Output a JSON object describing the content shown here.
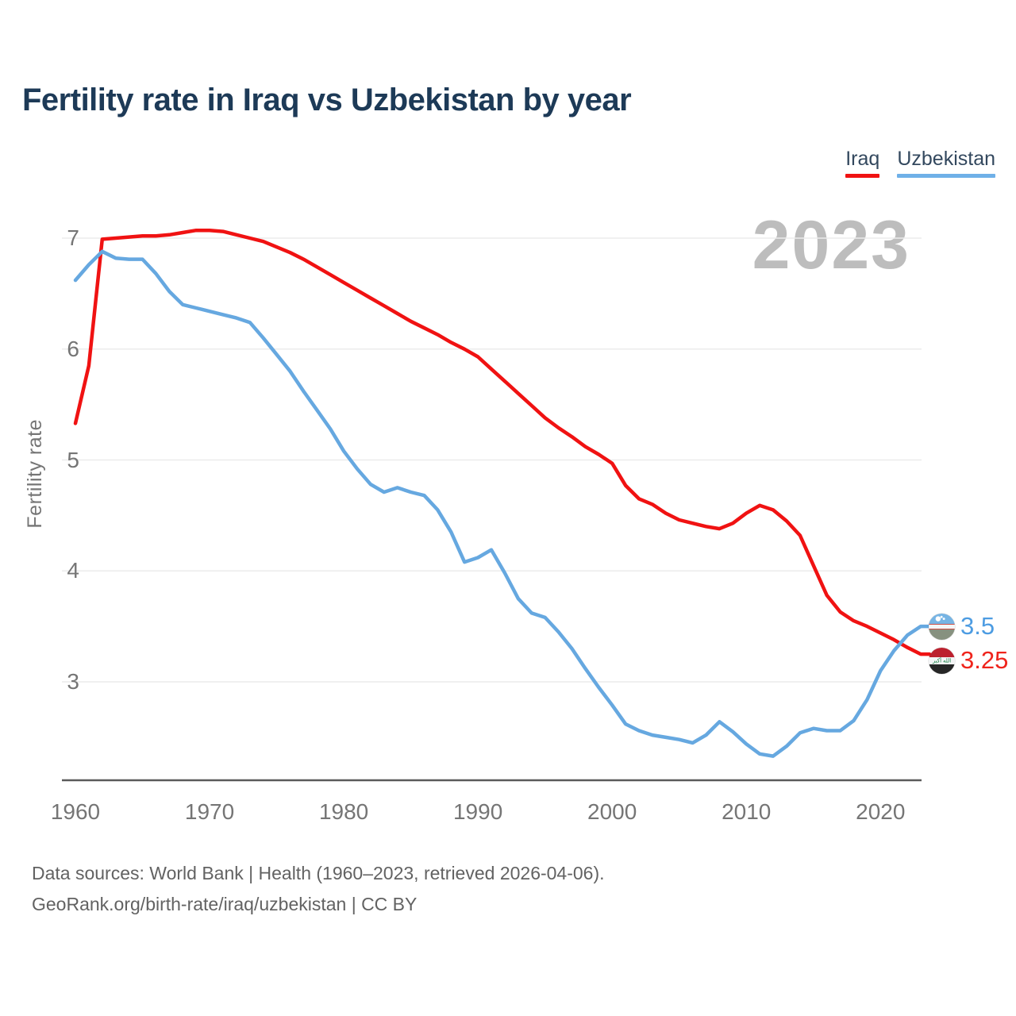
{
  "header": {
    "title": "Fertility rate in Iraq vs Uzbekistan by year"
  },
  "legend": {
    "items": [
      {
        "label": "Iraq",
        "color": "#f01212"
      },
      {
        "label": "Uzbekistan",
        "color": "#6fb0e8"
      }
    ]
  },
  "chart_data": {
    "type": "line",
    "title": "Fertility rate in Iraq vs Uzbekistan by year",
    "xlabel": "",
    "ylabel": "Fertility rate",
    "watermark": "2023",
    "grid": "horizontal",
    "legend_position": "top-right",
    "x_ticks": [
      1960,
      1970,
      1980,
      1990,
      2000,
      2010,
      2020
    ],
    "y_ticks": [
      7,
      6,
      5,
      4,
      3
    ],
    "xlim": [
      1960,
      2023
    ],
    "ylim": [
      2.1,
      7.15
    ],
    "x": [
      1960,
      1961,
      1962,
      1963,
      1964,
      1965,
      1966,
      1967,
      1968,
      1969,
      1970,
      1971,
      1972,
      1973,
      1974,
      1975,
      1976,
      1977,
      1978,
      1979,
      1980,
      1981,
      1982,
      1983,
      1984,
      1985,
      1986,
      1987,
      1988,
      1989,
      1990,
      1991,
      1992,
      1993,
      1994,
      1995,
      1996,
      1997,
      1998,
      1999,
      2000,
      2001,
      2002,
      2003,
      2004,
      2005,
      2006,
      2007,
      2008,
      2009,
      2010,
      2011,
      2012,
      2013,
      2014,
      2015,
      2016,
      2017,
      2018,
      2019,
      2020,
      2021,
      2022,
      2023
    ],
    "series": [
      {
        "name": "Iraq",
        "color": "#f01212",
        "end_label": "3.25",
        "values": [
          5.33,
          5.85,
          6.99,
          7.0,
          7.01,
          7.02,
          7.02,
          7.03,
          7.05,
          7.07,
          7.07,
          7.06,
          7.03,
          7.0,
          6.97,
          6.92,
          6.87,
          6.81,
          6.74,
          6.67,
          6.6,
          6.53,
          6.46,
          6.39,
          6.32,
          6.25,
          6.19,
          6.13,
          6.06,
          6.0,
          5.93,
          5.82,
          5.71,
          5.6,
          5.49,
          5.38,
          5.29,
          5.21,
          5.12,
          5.05,
          4.97,
          4.77,
          4.65,
          4.6,
          4.52,
          4.46,
          4.43,
          4.4,
          4.38,
          4.43,
          4.52,
          4.59,
          4.55,
          4.45,
          4.32,
          4.05,
          3.78,
          3.63,
          3.55,
          3.5,
          3.44,
          3.38,
          3.31,
          3.25
        ]
      },
      {
        "name": "Uzbekistan",
        "color": "#66a8e0",
        "end_label": "3.5",
        "values": [
          6.62,
          6.76,
          6.88,
          6.82,
          6.81,
          6.81,
          6.68,
          6.52,
          6.4,
          6.37,
          6.34,
          6.31,
          6.28,
          6.24,
          6.1,
          5.95,
          5.8,
          5.62,
          5.45,
          5.28,
          5.08,
          4.92,
          4.78,
          4.71,
          4.75,
          4.71,
          4.68,
          4.55,
          4.35,
          4.08,
          4.12,
          4.19,
          3.98,
          3.75,
          3.62,
          3.58,
          3.45,
          3.3,
          3.12,
          2.95,
          2.79,
          2.62,
          2.56,
          2.52,
          2.5,
          2.48,
          2.45,
          2.52,
          2.64,
          2.55,
          2.44,
          2.35,
          2.33,
          2.42,
          2.54,
          2.58,
          2.56,
          2.56,
          2.65,
          2.84,
          3.1,
          3.28,
          3.42,
          3.5
        ]
      }
    ]
  },
  "footer": {
    "line1": "Data sources: World Bank | Health (1960–2023, retrieved 2026-04-06).",
    "line2": "GeoRank.org/birth-rate/iraq/uzbekistan | CC BY"
  }
}
